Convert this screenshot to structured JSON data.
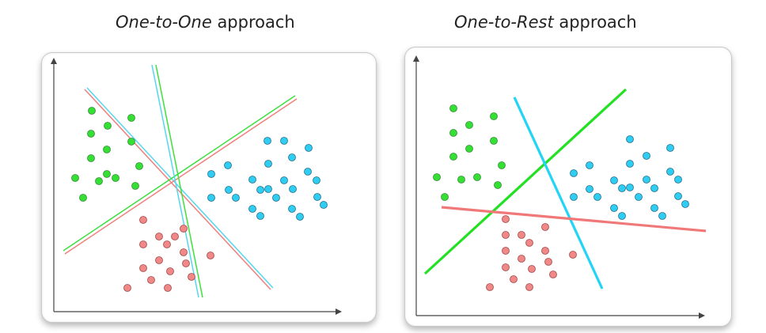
{
  "panels": [
    {
      "id": "one-to-one",
      "title_italic": "One-to-One",
      "title_rest": " approach",
      "lines": [
        {
          "name": "red-line-1",
          "color": "#f08080"
        },
        {
          "name": "red-line-2",
          "color": "#f08080"
        },
        {
          "name": "green-line-1",
          "color": "#3ee03e"
        },
        {
          "name": "green-line-2",
          "color": "#3ee03e"
        },
        {
          "name": "cyan-line-1",
          "color": "#55d6f0"
        },
        {
          "name": "cyan-line-2",
          "color": "#55d6f0"
        }
      ],
      "clusters": [
        {
          "name": "green-cluster",
          "color": "#33e033"
        },
        {
          "name": "blue-cluster",
          "color": "#2ecdf2"
        },
        {
          "name": "red-cluster",
          "color": "#f08888"
        }
      ]
    },
    {
      "id": "one-to-rest",
      "title_italic": "One-to-Rest",
      "title_rest": " approach",
      "lines": [
        {
          "name": "green-line",
          "color": "#22e022"
        },
        {
          "name": "cyan-line",
          "color": "#22d4f5"
        },
        {
          "name": "red-line",
          "color": "#f07878"
        }
      ],
      "clusters": [
        {
          "name": "green-cluster",
          "color": "#33e033"
        },
        {
          "name": "blue-cluster",
          "color": "#2ecdf2"
        },
        {
          "name": "red-cluster",
          "color": "#f08888"
        }
      ]
    }
  ]
}
